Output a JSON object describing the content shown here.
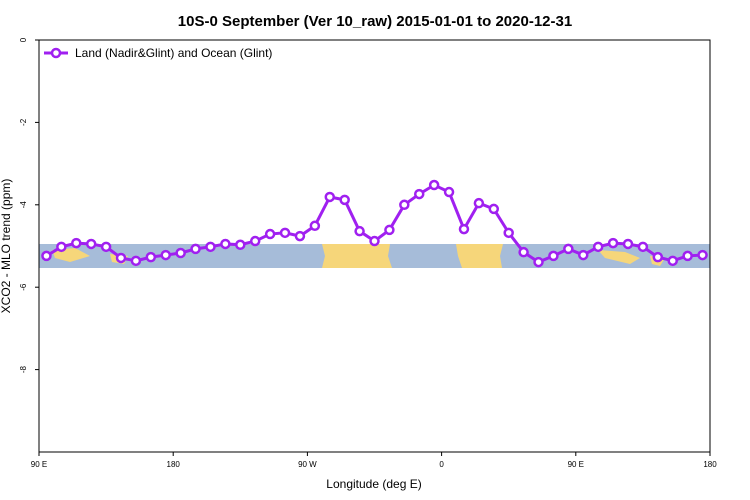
{
  "chart_data": {
    "type": "line",
    "title": "10S-0 September (Ver 10_raw)   2015-01-01 to 2020-12-31",
    "x_label": "Longitude (deg E)",
    "y_label": "XCO2 - MLO trend (ppm)",
    "xlim": [
      90,
      540
    ],
    "ylim": [
      -10,
      0
    ],
    "xticks": [
      {
        "value": 90,
        "label": "90 E"
      },
      180,
      {
        "value": 270,
        "label": "90 W"
      },
      {
        "value": 360,
        "label": "0"
      },
      {
        "value": 450,
        "label": "90 E"
      },
      {
        "value": 540,
        "label": "180"
      }
    ],
    "yticks": [
      0,
      -2,
      -4,
      -6,
      -8
    ],
    "legend": "top-left",
    "x": [
      95,
      105,
      115,
      125,
      135,
      145,
      155,
      165,
      175,
      185,
      195,
      205,
      215,
      225,
      235,
      245,
      255,
      265,
      275,
      285,
      295,
      305,
      315,
      325,
      335,
      345,
      355,
      365,
      375,
      385,
      395,
      405,
      415,
      425,
      435,
      445,
      455,
      465,
      475,
      485,
      495,
      505,
      515,
      525,
      535
    ],
    "series": [
      {
        "name": "Land (Nadir&Glint) and Ocean (Glint)",
        "color": "#a020f0",
        "values": [
          -5.24,
          -5.02,
          -4.93,
          -4.95,
          -5.02,
          -5.29,
          -5.36,
          -5.27,
          -5.22,
          -5.17,
          -5.07,
          -5.02,
          -4.95,
          -4.97,
          -4.88,
          -4.71,
          -4.68,
          -4.76,
          -4.51,
          -3.81,
          -3.88,
          -4.64,
          -4.88,
          -4.61,
          -4.0,
          -3.74,
          -3.52,
          -3.69,
          -4.59,
          -3.96,
          -4.1,
          -4.68,
          -5.15,
          -5.39,
          -5.24,
          -5.07,
          -5.22,
          -5.02,
          -4.93,
          -4.95,
          -5.02,
          -5.27,
          -5.36,
          -5.24,
          -5.22
        ]
      }
    ]
  }
}
